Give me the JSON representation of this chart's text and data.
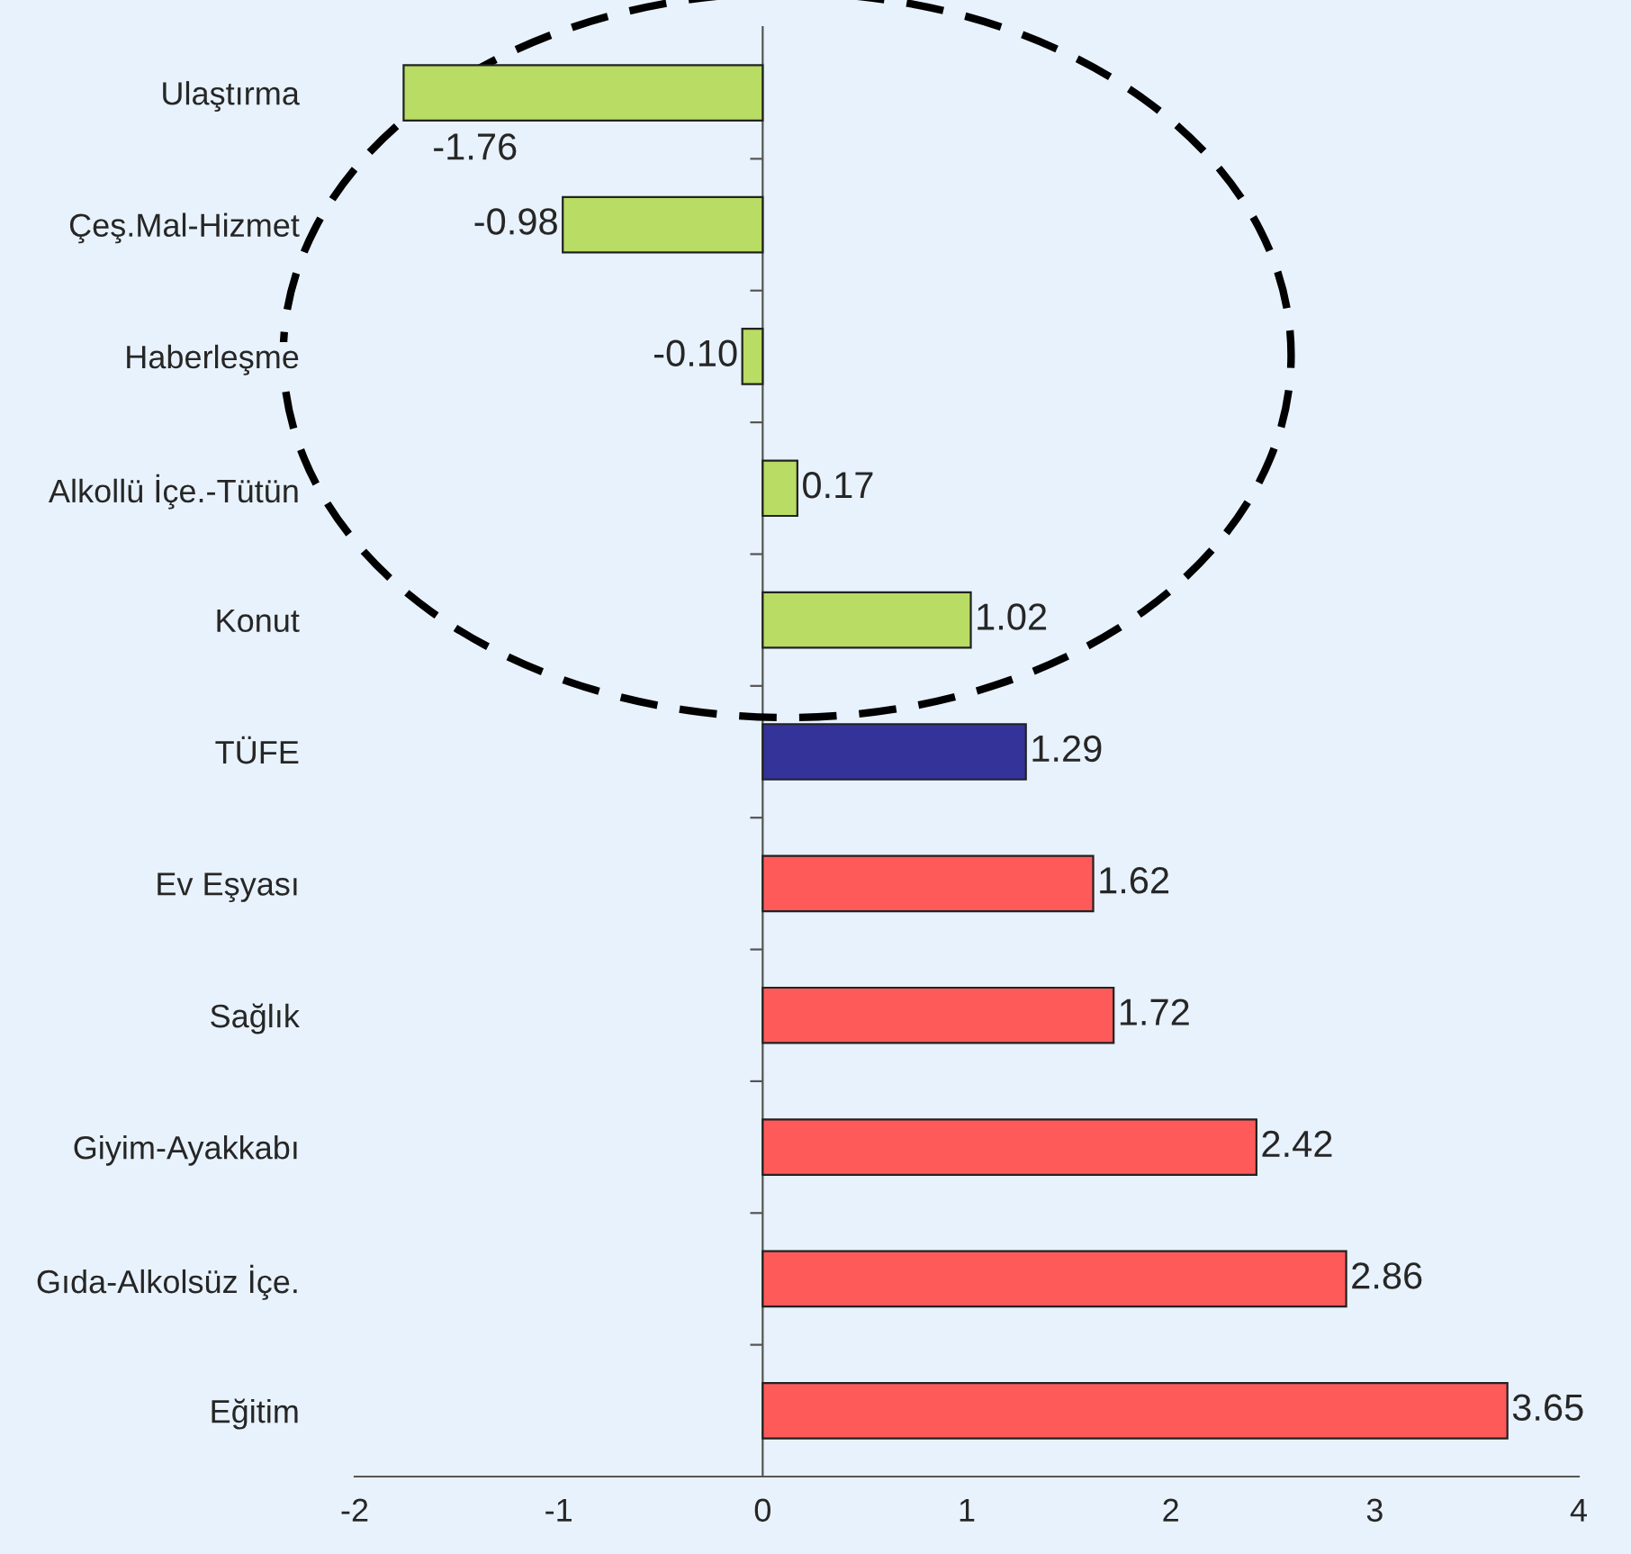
{
  "chart_data": {
    "type": "bar",
    "orientation": "horizontal",
    "categories": [
      "Ulaştırma",
      "Çeş.Mal-Hizmet",
      "Haberleşme",
      "Alkollü İçe.-Tütün",
      "Konut",
      "TÜFE",
      "Ev Eşyası",
      "Sağlık",
      "Giyim-Ayakkabı",
      "Gıda-Alkolsüz İçe.",
      "Eğitim"
    ],
    "values": [
      -1.76,
      -0.98,
      -0.1,
      0.17,
      1.02,
      1.29,
      1.62,
      1.72,
      2.42,
      2.86,
      3.65
    ],
    "colors": [
      "#b8dc64",
      "#b8dc64",
      "#b8dc64",
      "#b8dc64",
      "#b8dc64",
      "#333399",
      "#ff5a5a",
      "#ff5a5a",
      "#ff5a5a",
      "#ff5a5a",
      "#ff5a5a"
    ],
    "value_labels": [
      "-1.76",
      "-0.98",
      "-0.10",
      "0.17",
      "1.02",
      "1.29",
      "1.62",
      "1.72",
      "2.42",
      "2.86",
      "3.65"
    ],
    "xlim": [
      -2,
      4
    ],
    "xticks": [
      -2,
      -1,
      0,
      1,
      2,
      3,
      4
    ]
  }
}
